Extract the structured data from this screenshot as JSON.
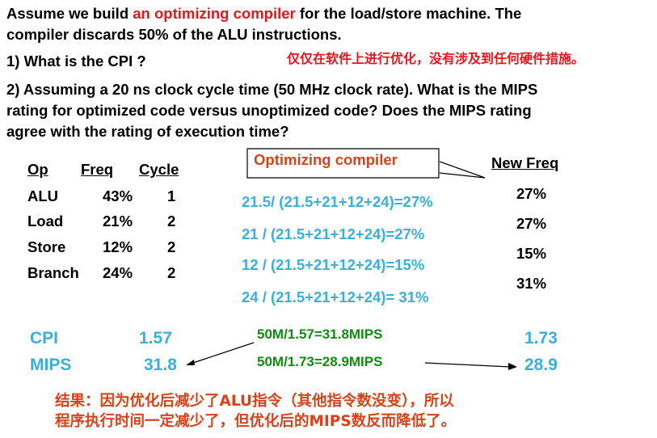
{
  "intro": {
    "line1_before": "Assume we build ",
    "line1_highlight": "an optimizing compiler",
    "line1_after": " for the load/store machine. The",
    "line2": "compiler discards 50% of the ALU instructions."
  },
  "q1": "1) What is the CPI ?",
  "note": "仅仅在软件上进行优化，没有涉及到任何硬件措施。",
  "q2": {
    "line1": "2) Assuming a 20 ns clock cycle time (50 MHz clock rate). What is the MIPS",
    "line2": "rating for optimized code versus unoptimized code?   Does the MIPS rating",
    "line3": "agree with the rating of execution time?"
  },
  "table": {
    "headers": [
      "Op",
      "Freq",
      "Cycle"
    ],
    "rows": [
      {
        "op": "ALU",
        "freq": "43%",
        "cycle": "1"
      },
      {
        "op": "Load",
        "freq": "21%",
        "cycle": "2"
      },
      {
        "op": "Store",
        "freq": "12%",
        "cycle": "2"
      },
      {
        "op": "Branch",
        "freq": "24%",
        "cycle": "2"
      }
    ]
  },
  "callout": "Optimizing compiler",
  "formulas": [
    "21.5/ (21.5+21+12+24)=27%",
    "21   / (21.5+21+12+24)=27%",
    "12   / (21.5+21+12+24)=15%",
    "24   / (21.5+21+12+24)= 31%"
  ],
  "new_freq": {
    "header": "New   Freq",
    "values": [
      "27%",
      "27%",
      "15%",
      "31%"
    ]
  },
  "metrics": {
    "cpi_label": "CPI",
    "cpi_old": "1.57",
    "cpi_new": "1.73",
    "mips_label": "MIPS",
    "mips_old": "31.8",
    "mips_new": "28.9",
    "calc1": "50M/1.57=31.8MIPS",
    "calc2": "50M/1.73=28.9MIPS"
  },
  "conclusion": {
    "line1": "结果：因为优化后减少了ALU指令（其他指令数没变），所以",
    "line2": "程序执行时间一定减少了，但优化后的MIPS数反而降低了。"
  }
}
